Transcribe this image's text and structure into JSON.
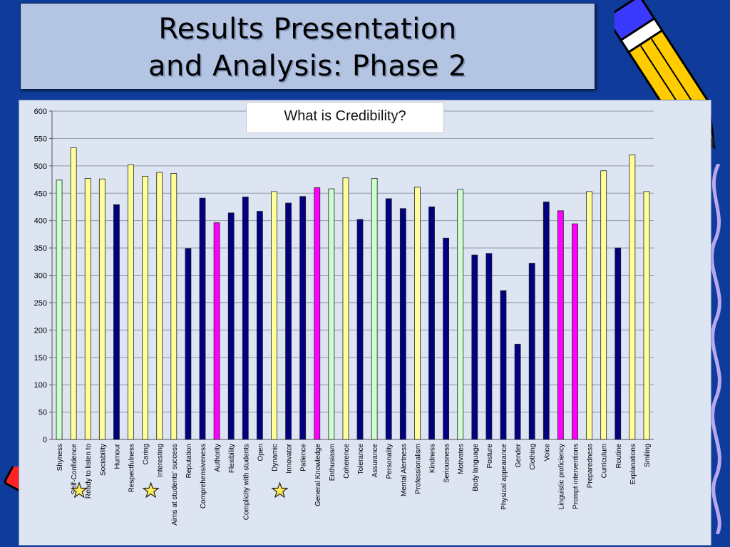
{
  "slide": {
    "title_line1": "Results Presentation",
    "title_line2": "and Analysis: Phase 2"
  },
  "colors": {
    "background": "#0f3b9a",
    "light_yellow": "#ffff99",
    "light_green": "#ccffcc",
    "navy": "#000080",
    "magenta": "#ff00ff"
  },
  "chart_data": {
    "type": "bar",
    "title": "What is Credibility?",
    "xlabel": "",
    "ylabel": "",
    "ylim": [
      0,
      600
    ],
    "yticks": [
      0,
      50,
      100,
      150,
      200,
      250,
      300,
      350,
      400,
      450,
      500,
      550,
      600
    ],
    "grid": true,
    "categories": [
      "Shyness",
      "Self-Confidence",
      "Ready to listen to",
      "Sociability",
      "Humour",
      "Respectfulness",
      "Caring",
      "Interesting",
      "Aims at students' success",
      "Reputation",
      "Comprehensiveness",
      "Authority",
      "Flexibility",
      "Complicity with students",
      "Open",
      "Dynamic",
      "Innovator",
      "Patience",
      "General Knowledge",
      "Enthusiasm",
      "Coherence",
      "Tolerance",
      "Assurance",
      "Personality",
      "Mental Alertness",
      "Professionalism",
      "Kindness",
      "Seriousness",
      "Motivates",
      "Body language",
      "Posture",
      "Physical appearance",
      "Gender",
      "Clothing",
      "Voice",
      "Linguistic proficiency",
      "Prompt interventions",
      "Preparedness",
      "Curriculum",
      "Routine",
      "Explanations",
      "Smiling"
    ],
    "values": [
      474,
      533,
      477,
      476,
      429,
      502,
      481,
      488,
      486,
      349,
      441,
      396,
      414,
      443,
      417,
      453,
      432,
      444,
      460,
      458,
      478,
      402,
      477,
      440,
      422,
      461,
      425,
      368,
      457,
      337,
      340,
      272,
      174,
      322,
      434,
      418,
      394,
      453,
      491,
      350,
      520,
      453
    ],
    "bar_colors": [
      "#ccffcc",
      "#ffff99",
      "#ffff99",
      "#ffff99",
      "#000080",
      "#ffff99",
      "#ffff99",
      "#ffff99",
      "#ffff99",
      "#000080",
      "#000080",
      "#ff00ff",
      "#000080",
      "#000080",
      "#000080",
      "#ffff99",
      "#000080",
      "#000080",
      "#ff00ff",
      "#ccffcc",
      "#ffff99",
      "#000080",
      "#ccffcc",
      "#000080",
      "#000080",
      "#ffff99",
      "#000080",
      "#000080",
      "#ccffcc",
      "#000080",
      "#000080",
      "#000080",
      "#000080",
      "#000080",
      "#000080",
      "#ff00ff",
      "#ff00ff",
      "#ffff99",
      "#ffff99",
      "#000080",
      "#ffff99",
      "#ffff99"
    ],
    "starred_categories": [
      "Self-Confidence",
      "Caring",
      "Dynamic"
    ]
  }
}
